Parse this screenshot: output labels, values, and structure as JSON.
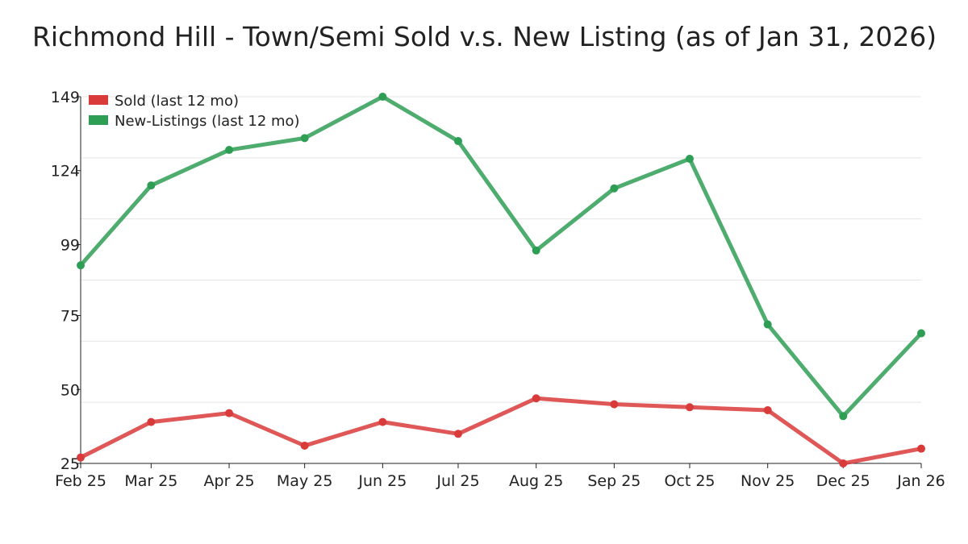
{
  "chart_data": {
    "type": "line",
    "title": "Richmond Hill - Town/Semi Sold v.s. New Listing (as of Jan 31, 2026)",
    "xlabel": "",
    "ylabel": "",
    "categories": [
      "Feb 25",
      "Mar 25",
      "Apr 25",
      "May 25",
      "Jun 25",
      "Jul 25",
      "Aug 25",
      "Sep 25",
      "Oct 25",
      "Nov 25",
      "Dec 25",
      "Jan 26"
    ],
    "day_offsets": [
      0,
      28,
      59,
      89,
      120,
      150,
      181,
      212,
      242,
      273,
      303,
      334
    ],
    "yticks": [
      149,
      124,
      99,
      75,
      50,
      25
    ],
    "ylim": [
      25,
      149
    ],
    "grid": true,
    "legend_position": "top-left",
    "series": [
      {
        "name": "Sold (last 12 mo)",
        "color": "#d93a3a",
        "values": [
          27,
          39,
          42,
          31,
          39,
          35,
          47,
          45,
          44,
          43,
          25,
          30
        ]
      },
      {
        "name": "New-Listings (last 12 mo)",
        "color": "#2e9e55",
        "values": [
          92,
          119,
          131,
          135,
          149,
          134,
          97,
          118,
          128,
          72,
          41,
          69
        ]
      }
    ]
  }
}
